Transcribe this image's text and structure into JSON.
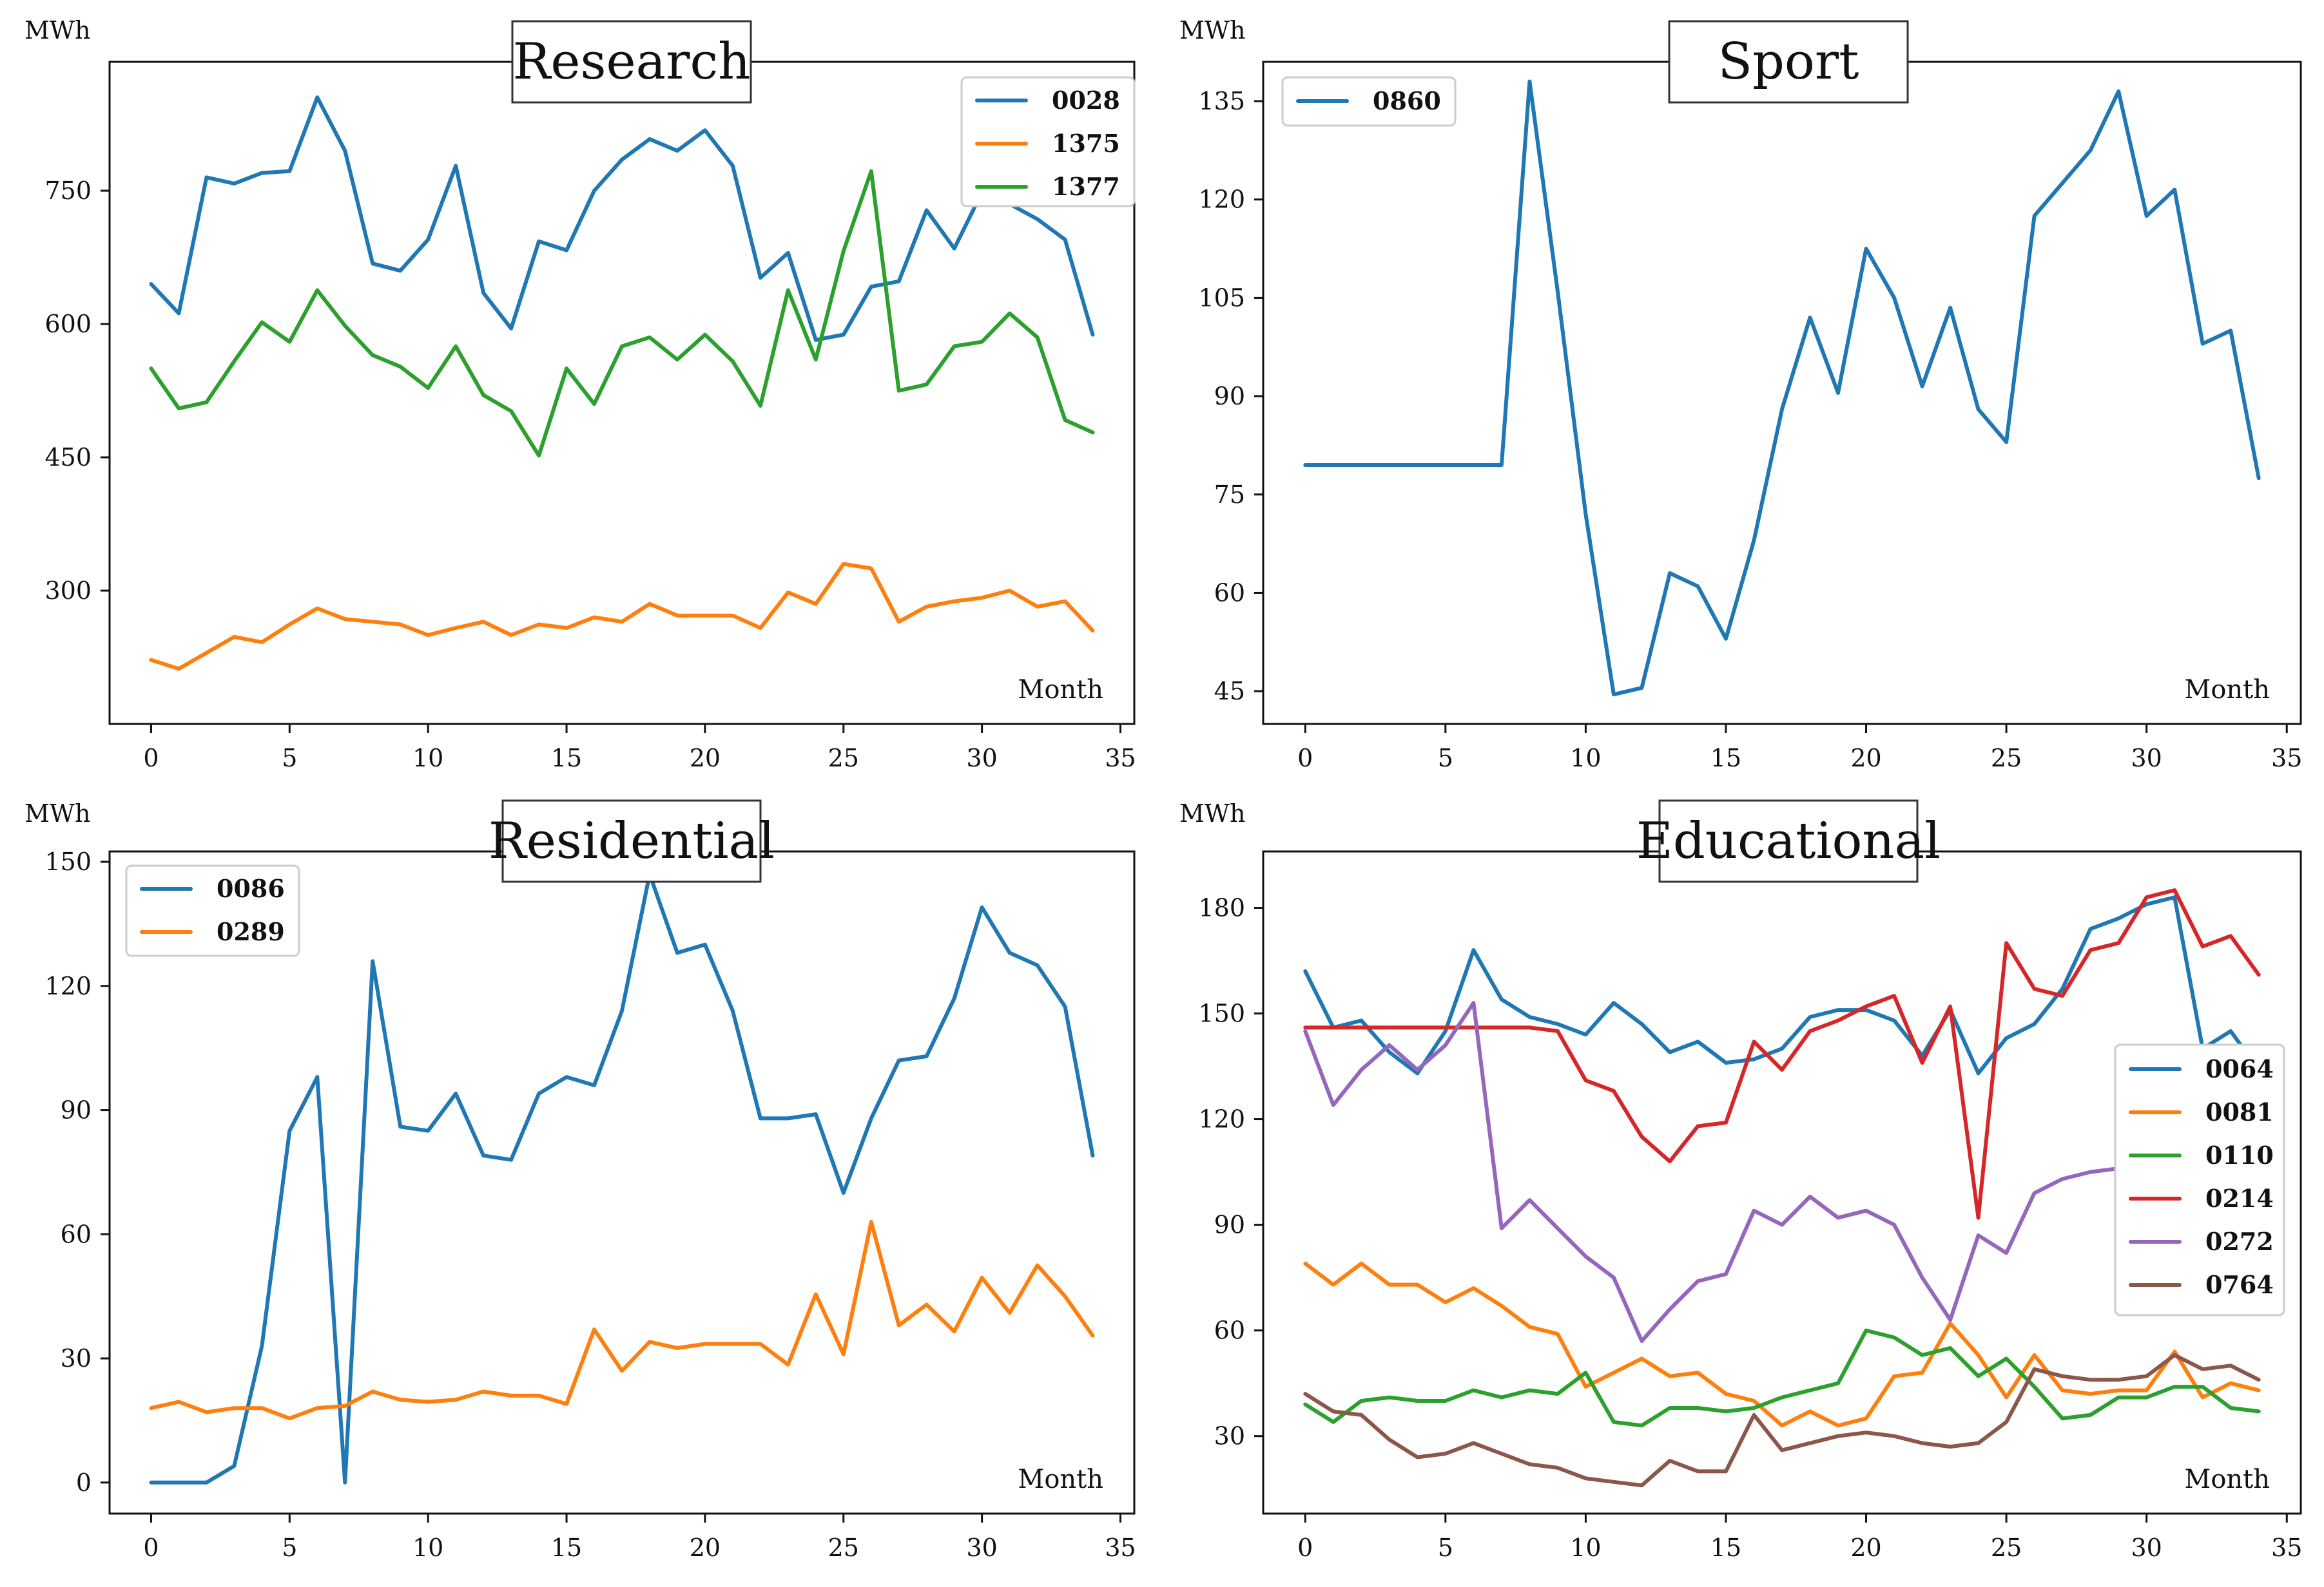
{
  "chart_data": [
    {
      "type": "line",
      "title": "Research",
      "ylabel": "MWh",
      "xlabel": "Month",
      "xlim": [
        -1.5,
        35.5
      ],
      "ylim": [
        150,
        895
      ],
      "xticks": [
        0,
        5,
        10,
        15,
        20,
        25,
        30,
        35
      ],
      "yticks": [
        300,
        450,
        600,
        750
      ],
      "legend_position": "top-right",
      "x": [
        0,
        1,
        2,
        3,
        4,
        5,
        6,
        7,
        8,
        9,
        10,
        11,
        12,
        13,
        14,
        15,
        16,
        17,
        18,
        19,
        20,
        21,
        22,
        23,
        24,
        25,
        26,
        27,
        28,
        29,
        30,
        31,
        32,
        33,
        34
      ],
      "series": [
        {
          "name": "0028",
          "color": "#1f77b4",
          "values": [
            645,
            612,
            765,
            758,
            770,
            772,
            855,
            795,
            668,
            660,
            695,
            778,
            635,
            595,
            693,
            683,
            750,
            785,
            808,
            795,
            818,
            778,
            652,
            680,
            582,
            588,
            642,
            648,
            728,
            685,
            748,
            735,
            718,
            695,
            588
          ]
        },
        {
          "name": "1375",
          "color": "#ff7f0e",
          "values": [
            222,
            212,
            230,
            248,
            242,
            262,
            280,
            268,
            265,
            262,
            250,
            258,
            265,
            250,
            262,
            258,
            270,
            265,
            285,
            272,
            272,
            272,
            258,
            298,
            285,
            330,
            325,
            265,
            282,
            288,
            292,
            300,
            282,
            288,
            255
          ]
        },
        {
          "name": "1377",
          "color": "#2ca02c",
          "values": [
            550,
            505,
            512,
            558,
            602,
            580,
            638,
            598,
            565,
            552,
            528,
            575,
            520,
            502,
            452,
            550,
            510,
            575,
            585,
            560,
            588,
            558,
            508,
            638,
            560,
            682,
            772,
            525,
            532,
            575,
            580,
            612,
            585,
            492,
            478
          ]
        }
      ]
    },
    {
      "type": "line",
      "title": "Sport",
      "ylabel": "MWh",
      "xlabel": "Month",
      "xlim": [
        -1.5,
        35.5
      ],
      "ylim": [
        40,
        141
      ],
      "xticks": [
        0,
        5,
        10,
        15,
        20,
        25,
        30,
        35
      ],
      "yticks": [
        45,
        60,
        75,
        90,
        105,
        120,
        135
      ],
      "legend_position": "top-left",
      "x": [
        0,
        1,
        2,
        3,
        4,
        5,
        6,
        7,
        8,
        9,
        10,
        11,
        12,
        13,
        14,
        15,
        16,
        17,
        18,
        19,
        20,
        21,
        22,
        23,
        24,
        25,
        26,
        27,
        28,
        29,
        30,
        31,
        32,
        33,
        34
      ],
      "series": [
        {
          "name": "0860",
          "color": "#1f77b4",
          "values": [
            79.5,
            79.5,
            79.5,
            79.5,
            79.5,
            79.5,
            79.5,
            79.5,
            138,
            106,
            72,
            44.5,
            45.5,
            63,
            61,
            53,
            68,
            88,
            102,
            90.5,
            112.5,
            105,
            91.5,
            103.5,
            88,
            83,
            117.5,
            122.5,
            127.5,
            136.5,
            117.5,
            121.5,
            98,
            100,
            77.5
          ]
        }
      ]
    },
    {
      "type": "line",
      "title": "Residential",
      "ylabel": "MWh",
      "xlabel": "Month",
      "xlim": [
        -1.5,
        35.5
      ],
      "ylim": [
        -7.5,
        152.5
      ],
      "xticks": [
        0,
        5,
        10,
        15,
        20,
        25,
        30,
        35
      ],
      "yticks": [
        0,
        30,
        60,
        90,
        120,
        150
      ],
      "legend_position": "top-left",
      "x": [
        0,
        1,
        2,
        3,
        4,
        5,
        6,
        7,
        8,
        9,
        10,
        11,
        12,
        13,
        14,
        15,
        16,
        17,
        18,
        19,
        20,
        21,
        22,
        23,
        24,
        25,
        26,
        27,
        28,
        29,
        30,
        31,
        32,
        33,
        34
      ],
      "series": [
        {
          "name": "0086",
          "color": "#1f77b4",
          "values": [
            0,
            0,
            0,
            4,
            33,
            85,
            98,
            0,
            126,
            86,
            85,
            94,
            79,
            78,
            94,
            98,
            96,
            114,
            147,
            128,
            130,
            114,
            88,
            88,
            89,
            70,
            88,
            102,
            103,
            117,
            139,
            128,
            125,
            115,
            79
          ]
        },
        {
          "name": "0289",
          "color": "#ff7f0e",
          "values": [
            18,
            19.5,
            17,
            18,
            18,
            15.5,
            18,
            18.5,
            22,
            20,
            19.5,
            20,
            22,
            21,
            21,
            19,
            37,
            27,
            34,
            32.5,
            33.5,
            33.5,
            33.5,
            28.5,
            45.5,
            31,
            63,
            38,
            43,
            36.5,
            49.5,
            41,
            52.5,
            45,
            35.5
          ]
        }
      ]
    },
    {
      "type": "line",
      "title": "Educational",
      "ylabel": "MWh",
      "xlabel": "Month",
      "xlim": [
        -1.5,
        35.5
      ],
      "ylim": [
        8,
        196
      ],
      "xticks": [
        0,
        5,
        10,
        15,
        20,
        25,
        30,
        35
      ],
      "yticks": [
        30,
        60,
        90,
        120,
        150,
        180
      ],
      "legend_position": "center-right",
      "x": [
        0,
        1,
        2,
        3,
        4,
        5,
        6,
        7,
        8,
        9,
        10,
        11,
        12,
        13,
        14,
        15,
        16,
        17,
        18,
        19,
        20,
        21,
        22,
        23,
        24,
        25,
        26,
        27,
        28,
        29,
        30,
        31,
        32,
        33,
        34
      ],
      "series": [
        {
          "name": "0064",
          "color": "#1f77b4",
          "values": [
            162,
            146,
            148,
            139,
            133,
            145,
            168,
            154,
            149,
            147,
            144,
            153,
            147,
            139,
            142,
            136,
            137,
            140,
            149,
            151,
            151,
            148,
            138,
            151,
            133,
            143,
            147,
            157,
            174,
            177,
            181,
            183,
            140,
            145,
            134
          ]
        },
        {
          "name": "0081",
          "color": "#ff7f0e",
          "values": [
            79,
            73,
            79,
            73,
            73,
            68,
            72,
            67,
            61,
            59,
            44,
            48,
            52,
            47,
            48,
            42,
            40,
            33,
            37,
            33,
            35,
            47,
            48,
            62,
            53,
            41,
            53,
            43,
            42,
            43,
            43,
            54,
            41,
            45,
            43
          ]
        },
        {
          "name": "0110",
          "color": "#2ca02c",
          "values": [
            39,
            34,
            40,
            41,
            40,
            40,
            43,
            41,
            43,
            42,
            48,
            34,
            33,
            38,
            38,
            37,
            38,
            41,
            43,
            45,
            60,
            58,
            53,
            55,
            47,
            52,
            44,
            35,
            36,
            41,
            41,
            44,
            44,
            38,
            37
          ]
        },
        {
          "name": "0214",
          "color": "#d62728",
          "values": [
            146,
            146,
            146,
            146,
            146,
            146,
            146,
            146,
            146,
            145,
            131,
            128,
            115,
            108,
            118,
            119,
            142,
            134,
            145,
            148,
            152,
            155,
            136,
            152,
            92,
            170,
            157,
            155,
            168,
            170,
            183,
            185,
            169,
            172,
            161
          ]
        },
        {
          "name": "0272",
          "color": "#9467bd",
          "values": [
            145,
            124,
            134,
            141,
            134,
            141,
            153,
            89,
            97,
            89,
            81,
            75,
            57,
            66,
            74,
            76,
            94,
            90,
            98,
            92,
            94,
            90,
            75,
            63,
            87,
            82,
            99,
            103,
            105,
            106,
            109,
            113,
            117,
            120,
            103
          ]
        },
        {
          "name": "0764",
          "color": "#8c564b",
          "values": [
            42,
            37,
            36,
            29,
            24,
            25,
            28,
            25,
            22,
            21,
            18,
            17,
            16,
            23,
            20,
            20,
            36,
            26,
            28,
            30,
            31,
            30,
            28,
            27,
            28,
            34,
            49,
            47,
            46,
            46,
            47,
            53,
            49,
            50,
            46
          ]
        }
      ]
    }
  ]
}
